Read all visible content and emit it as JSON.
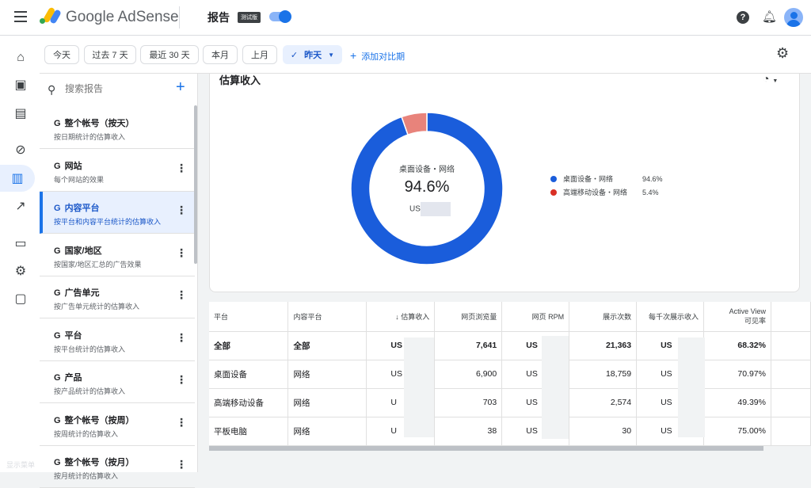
{
  "header": {
    "app_name": "Google AdSense",
    "page_title": "报告",
    "beta_badge": "测试版",
    "toggle_on": true,
    "icons": [
      "menu-icon",
      "help-icon",
      "bell-icon",
      "avatar"
    ]
  },
  "rail": {
    "icons": [
      "home-icon",
      "sites-icon",
      "ad-units-icon",
      "block-icon",
      "reports-icon",
      "trend-icon",
      "payments-icon",
      "settings-icon",
      "feedback-icon"
    ],
    "active": "reports-icon",
    "footer_label": "显示菜单"
  },
  "filters": {
    "chips": [
      "今天",
      "过去 7 天",
      "最近 30 天",
      "本月",
      "上月"
    ],
    "selected": "昨天",
    "add_compare": "添加对比期"
  },
  "reports": {
    "search_placeholder": "搜索报告",
    "items": [
      {
        "title": "整个帐号（按天）",
        "subtitle": "按日期统计的估算收入"
      },
      {
        "title": "网站",
        "subtitle": "每个网站的效果"
      },
      {
        "title": "内容平台",
        "subtitle": "按平台和内容平台统计的估算收入",
        "active": true
      },
      {
        "title": "国家/地区",
        "subtitle": "按国家/地区汇总的广告效果"
      },
      {
        "title": "广告单元",
        "subtitle": "按广告单元统计的估算收入"
      },
      {
        "title": "平台",
        "subtitle": "按平台统计的估算收入"
      },
      {
        "title": "产品",
        "subtitle": "按产品统计的估算收入"
      },
      {
        "title": "整个帐号（按周）",
        "subtitle": "按周统计的估算收入"
      },
      {
        "title": "整个帐号（按月）",
        "subtitle": "按月统计的估算收入"
      }
    ]
  },
  "chart_card": {
    "title": "估算收入",
    "center_label": "桌面设备・网络",
    "center_value": "94.6%",
    "center_currency": "US"
  },
  "chart_data": {
    "type": "pie",
    "title": "估算收入",
    "donut": true,
    "slices": [
      {
        "name": "桌面设备・网络",
        "value": 94.6,
        "label": "94.6%",
        "color": "#1a5ddb"
      },
      {
        "name": "高端移动设备・网络",
        "value": 5.4,
        "label": "5.4%",
        "color": "#e8837b"
      }
    ],
    "legend_placement": "right",
    "legend_dot_colors": [
      "#1a5ddb",
      "#d93025"
    ]
  },
  "table": {
    "headers": [
      "平台",
      "内容平台",
      "↓ 估算收入",
      "网页浏览量",
      "网页 RPM",
      "展示次数",
      "每千次展示收入",
      "Active View\n可见率",
      ""
    ],
    "rows": [
      [
        "全部",
        "全部",
        "US",
        "7,641",
        "US",
        "21,363",
        "US",
        "68.32%",
        ""
      ],
      [
        "桌面设备",
        "网络",
        "US",
        "6,900",
        "US",
        "18,759",
        "US",
        "70.97%",
        ""
      ],
      [
        "高端移动设备",
        "网络",
        "U",
        "703",
        "US",
        "2,574",
        "US",
        "49.39%",
        ""
      ],
      [
        "平板电脑",
        "网络",
        "U",
        "38",
        "US",
        "30",
        "US",
        "75.00%",
        ""
      ]
    ]
  }
}
